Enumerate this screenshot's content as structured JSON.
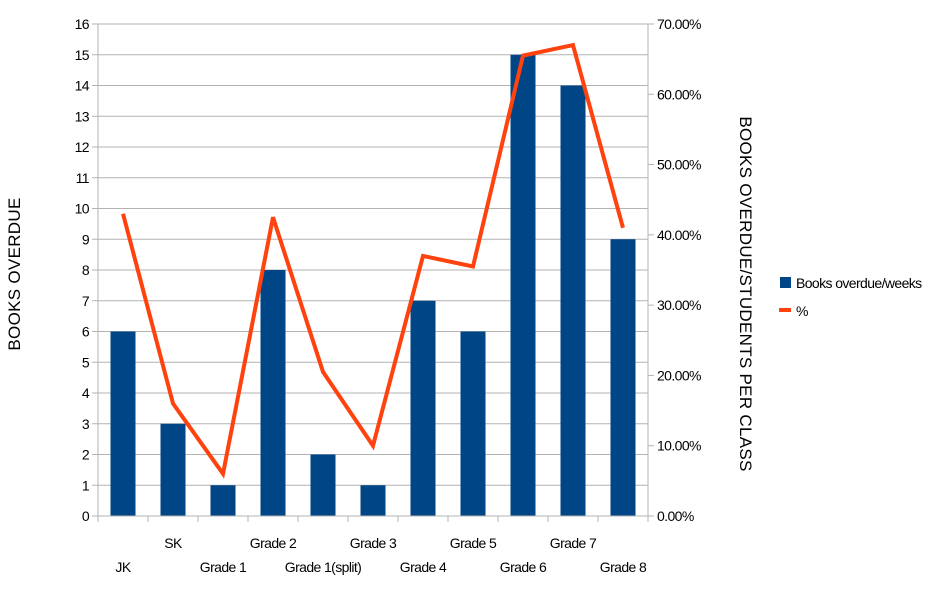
{
  "chart_data": {
    "type": "bar",
    "categories": [
      "JK",
      "SK",
      "Grade 1",
      "Grade 2",
      "Grade 1(split)",
      "Grade 3",
      "Grade 4",
      "Grade 5",
      "Grade 6",
      "Grade 7",
      "Grade 8"
    ],
    "series": [
      {
        "name": "Books overdue/weeks",
        "type": "bar",
        "axis": "left",
        "color": "#004586",
        "values": [
          6,
          3,
          1,
          8,
          2,
          1,
          7,
          6,
          15,
          14,
          9
        ]
      },
      {
        "name": "%",
        "type": "line",
        "axis": "right",
        "color": "#ff420e",
        "values": [
          0.43,
          0.16,
          0.06,
          0.425,
          0.205,
          0.1,
          0.37,
          0.355,
          0.655,
          0.67,
          0.41
        ]
      }
    ],
    "ylabel": "BOOKS OVERDUE",
    "y2label": "BOOKS OVERDUE/STUDENTS PER CLASS",
    "xlabel": "",
    "ylim": [
      0,
      16
    ],
    "y2lim": [
      0,
      0.7
    ],
    "yticks": [
      "0",
      "1",
      "2",
      "3",
      "4",
      "5",
      "6",
      "7",
      "8",
      "9",
      "10",
      "11",
      "12",
      "13",
      "14",
      "15",
      "16"
    ],
    "y2ticks": [
      "0.00%",
      "10.00%",
      "20.00%",
      "30.00%",
      "40.00%",
      "50.00%",
      "60.00%",
      "70.00%"
    ],
    "grid": true,
    "legend_position": "right"
  }
}
